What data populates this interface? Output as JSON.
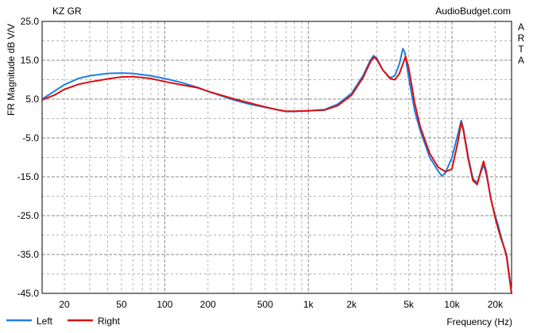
{
  "header": {
    "left": "KZ GR",
    "right": "AudioBudget.com"
  },
  "side_text": "ARTA",
  "chart_data": {
    "type": "line",
    "title": "KZ GR",
    "source": "AudioBudget.com",
    "xlabel": "Frequency (Hz)",
    "ylabel": "FR Magnitude dB V/V",
    "x_scale": "log",
    "xlim": [
      14,
      26000
    ],
    "ylim": [
      -45,
      25
    ],
    "grid": true,
    "legend_position": "bottom-left",
    "x_ticks": [
      {
        "value": 20,
        "label": "20"
      },
      {
        "value": 50,
        "label": "50"
      },
      {
        "value": 100,
        "label": "100"
      },
      {
        "value": 200,
        "label": "200"
      },
      {
        "value": 500,
        "label": "500"
      },
      {
        "value": 1000,
        "label": "1k"
      },
      {
        "value": 2000,
        "label": "2k"
      },
      {
        "value": 5000,
        "label": "5k"
      },
      {
        "value": 10000,
        "label": "10k"
      },
      {
        "value": 20000,
        "label": "20k"
      }
    ],
    "y_ticks": [
      {
        "value": 25,
        "label": "25.0"
      },
      {
        "value": 15,
        "label": "15.0"
      },
      {
        "value": 5,
        "label": "5.0"
      },
      {
        "value": -5,
        "label": "-5.0"
      },
      {
        "value": -15,
        "label": "-15.0"
      },
      {
        "value": -25,
        "label": "-25.0"
      },
      {
        "value": -35,
        "label": "-35.0"
      },
      {
        "value": -45,
        "label": "-45.0"
      }
    ],
    "series": [
      {
        "name": "Left",
        "color": "#1f7fe0",
        "points": [
          [
            14,
            5.0
          ],
          [
            17,
            7.0
          ],
          [
            20,
            8.7
          ],
          [
            25,
            10.3
          ],
          [
            30,
            11.0
          ],
          [
            40,
            11.6
          ],
          [
            50,
            11.7
          ],
          [
            60,
            11.6
          ],
          [
            80,
            11.0
          ],
          [
            100,
            10.3
          ],
          [
            130,
            9.3
          ],
          [
            170,
            8.0
          ],
          [
            200,
            7.0
          ],
          [
            300,
            4.8
          ],
          [
            400,
            3.6
          ],
          [
            500,
            2.9
          ],
          [
            600,
            2.3
          ],
          [
            700,
            1.8
          ],
          [
            800,
            1.8
          ],
          [
            1000,
            2.0
          ],
          [
            1300,
            2.3
          ],
          [
            1600,
            3.7
          ],
          [
            2000,
            6.5
          ],
          [
            2400,
            11.0
          ],
          [
            2700,
            15.0
          ],
          [
            2850,
            16.2
          ],
          [
            3000,
            15.5
          ],
          [
            3300,
            12.5
          ],
          [
            3700,
            10.5
          ],
          [
            4000,
            11.0
          ],
          [
            4300,
            14.0
          ],
          [
            4550,
            18.0
          ],
          [
            4700,
            17.0
          ],
          [
            5000,
            10.5
          ],
          [
            5500,
            2.0
          ],
          [
            6000,
            -3.0
          ],
          [
            7000,
            -10.0
          ],
          [
            8000,
            -13.5
          ],
          [
            8500,
            -14.8
          ],
          [
            9000,
            -14.0
          ],
          [
            10000,
            -10.0
          ],
          [
            11000,
            -4.0
          ],
          [
            11600,
            -0.5
          ],
          [
            12000,
            -2.5
          ],
          [
            13000,
            -10.0
          ],
          [
            14000,
            -15.5
          ],
          [
            15000,
            -16.5
          ],
          [
            16000,
            -13.5
          ],
          [
            16700,
            -12.0
          ],
          [
            17500,
            -15.0
          ],
          [
            19000,
            -22.0
          ],
          [
            20000,
            -25.0
          ],
          [
            21000,
            -27.5
          ],
          [
            22000,
            -30.5
          ],
          [
            23000,
            -33.0
          ],
          [
            24000,
            -35.0
          ],
          [
            25000,
            -40.0
          ],
          [
            26000,
            -45.0
          ]
        ]
      },
      {
        "name": "Right",
        "color": "#d81010",
        "points": [
          [
            14,
            4.8
          ],
          [
            17,
            6.0
          ],
          [
            20,
            7.5
          ],
          [
            25,
            8.8
          ],
          [
            30,
            9.4
          ],
          [
            40,
            10.2
          ],
          [
            50,
            10.7
          ],
          [
            60,
            10.8
          ],
          [
            80,
            10.3
          ],
          [
            100,
            9.5
          ],
          [
            130,
            8.7
          ],
          [
            170,
            7.9
          ],
          [
            200,
            7.0
          ],
          [
            300,
            5.1
          ],
          [
            400,
            3.9
          ],
          [
            500,
            3.0
          ],
          [
            600,
            2.3
          ],
          [
            700,
            1.9
          ],
          [
            800,
            1.9
          ],
          [
            1000,
            2.0
          ],
          [
            1300,
            2.2
          ],
          [
            1600,
            3.3
          ],
          [
            2000,
            6.0
          ],
          [
            2400,
            10.5
          ],
          [
            2700,
            14.5
          ],
          [
            2850,
            15.8
          ],
          [
            3000,
            15.2
          ],
          [
            3300,
            12.5
          ],
          [
            3700,
            10.3
          ],
          [
            4000,
            10.0
          ],
          [
            4300,
            11.5
          ],
          [
            4600,
            14.5
          ],
          [
            4750,
            16.0
          ],
          [
            5000,
            13.0
          ],
          [
            5500,
            4.0
          ],
          [
            6000,
            -2.0
          ],
          [
            7000,
            -9.0
          ],
          [
            8000,
            -12.5
          ],
          [
            9000,
            -13.7
          ],
          [
            10000,
            -13.0
          ],
          [
            11000,
            -6.0
          ],
          [
            11600,
            -1.0
          ],
          [
            12000,
            -3.0
          ],
          [
            13000,
            -10.5
          ],
          [
            14000,
            -16.0
          ],
          [
            15000,
            -17.0
          ],
          [
            16000,
            -13.0
          ],
          [
            16600,
            -11.0
          ],
          [
            17300,
            -13.5
          ],
          [
            18500,
            -20.0
          ],
          [
            20000,
            -25.5
          ],
          [
            21000,
            -28.5
          ],
          [
            22000,
            -31.0
          ],
          [
            23000,
            -33.0
          ],
          [
            24000,
            -35.5
          ],
          [
            25000,
            -40.5
          ],
          [
            26000,
            -45.0
          ]
        ]
      }
    ]
  }
}
